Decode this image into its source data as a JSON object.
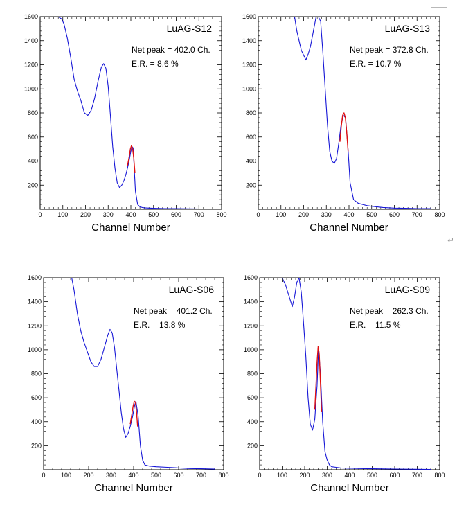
{
  "page": {
    "return_mark": "↵"
  },
  "chart_data": [
    {
      "type": "line",
      "title": "LuAG-S12",
      "xlabel": "Channel Number",
      "annotations": [
        "Net peak =  402.0 Ch.",
        "E.R. = 8.6 %"
      ],
      "xlim": [
        0,
        800
      ],
      "ylim": [
        0,
        1600
      ],
      "xticks": [
        0,
        100,
        200,
        300,
        400,
        500,
        600,
        700,
        800
      ],
      "yticks": [
        200,
        400,
        600,
        800,
        1000,
        1200,
        1400,
        1600
      ],
      "series": [
        {
          "color": "#1515d6",
          "x": [
            80,
            95,
            105,
            120,
            135,
            150,
            165,
            180,
            195,
            210,
            225,
            240,
            255,
            270,
            280,
            290,
            300,
            310,
            320,
            330,
            340,
            350,
            360,
            370,
            380,
            390,
            400,
            405,
            410,
            420,
            430,
            440,
            450,
            460,
            480,
            500,
            550,
            600,
            650,
            700,
            760
          ],
          "y": [
            1600,
            1580,
            1540,
            1420,
            1260,
            1080,
            980,
            900,
            800,
            780,
            820,
            920,
            1060,
            1180,
            1210,
            1170,
            1020,
            780,
            520,
            340,
            220,
            180,
            200,
            240,
            300,
            380,
            480,
            520,
            510,
            150,
            40,
            20,
            15,
            12,
            10,
            8,
            6,
            5,
            4,
            3,
            2
          ]
        },
        {
          "color": "#e01010",
          "x": [
            385,
            392,
            398,
            403,
            408,
            413,
            418
          ],
          "y": [
            360,
            430,
            500,
            530,
            500,
            420,
            300
          ]
        }
      ]
    },
    {
      "type": "line",
      "title": "LuAG-S13",
      "xlabel": "Channel Number",
      "annotations": [
        "Net peak =  372.8 Ch.",
        "E.R. = 10.7 %"
      ],
      "xlim": [
        0,
        800
      ],
      "ylim": [
        0,
        1600
      ],
      "xticks": [
        0,
        100,
        200,
        300,
        400,
        500,
        600,
        700,
        800
      ],
      "yticks": [
        200,
        400,
        600,
        800,
        1000,
        1200,
        1400,
        1600
      ],
      "series": [
        {
          "color": "#1515d6",
          "x": [
            160,
            170,
            180,
            190,
            200,
            210,
            220,
            230,
            240,
            255,
            265,
            275,
            285,
            295,
            305,
            315,
            325,
            335,
            345,
            355,
            365,
            375,
            385,
            395,
            405,
            420,
            440,
            460,
            480,
            500,
            550,
            600,
            650,
            700,
            760
          ],
          "y": [
            1600,
            1480,
            1400,
            1320,
            1280,
            1240,
            1290,
            1350,
            1450,
            1600,
            1600,
            1560,
            1300,
            1000,
            700,
            480,
            400,
            380,
            420,
            550,
            700,
            780,
            760,
            520,
            220,
            80,
            50,
            40,
            30,
            25,
            15,
            10,
            8,
            6,
            5
          ]
        },
        {
          "color": "#e01010",
          "x": [
            360,
            366,
            372,
            378,
            384,
            390,
            396
          ],
          "y": [
            560,
            690,
            780,
            800,
            760,
            640,
            480
          ]
        }
      ]
    },
    {
      "type": "line",
      "title": "LuAG-S06",
      "xlabel": "Channel Number",
      "annotations": [
        "Net peak =  401.2 Ch.",
        "E.R. = 13.8 %"
      ],
      "xlim": [
        0,
        800
      ],
      "ylim": [
        0,
        1600
      ],
      "xticks": [
        0,
        100,
        200,
        300,
        400,
        500,
        600,
        700,
        800
      ],
      "yticks": [
        200,
        400,
        600,
        800,
        1000,
        1200,
        1400,
        1600
      ],
      "series": [
        {
          "color": "#1515d6",
          "x": [
            125,
            135,
            150,
            165,
            180,
            195,
            210,
            225,
            240,
            255,
            270,
            285,
            295,
            305,
            315,
            325,
            335,
            345,
            355,
            365,
            375,
            385,
            395,
            405,
            410,
            420,
            430,
            440,
            450,
            470,
            500,
            550,
            600,
            650,
            700,
            760
          ],
          "y": [
            1600,
            1500,
            1300,
            1160,
            1060,
            980,
            900,
            860,
            860,
            920,
            1020,
            1120,
            1170,
            1140,
            1020,
            840,
            660,
            480,
            340,
            270,
            300,
            360,
            440,
            540,
            570,
            450,
            200,
            80,
            40,
            30,
            25,
            20,
            15,
            10,
            8,
            5
          ]
        },
        {
          "color": "#e01010",
          "x": [
            385,
            392,
            398,
            403,
            408,
            413,
            418
          ],
          "y": [
            380,
            460,
            530,
            570,
            560,
            480,
            360
          ]
        }
      ]
    },
    {
      "type": "line",
      "title": "LuAG-S09",
      "xlabel": "Channel Number",
      "annotations": [
        "Net peak =  262.3 Ch.",
        "E.R. = 11.5 %"
      ],
      "xlim": [
        0,
        800
      ],
      "ylim": [
        0,
        1600
      ],
      "xticks": [
        0,
        100,
        200,
        300,
        400,
        500,
        600,
        700,
        800
      ],
      "yticks": [
        200,
        400,
        600,
        800,
        1000,
        1200,
        1400,
        1600
      ],
      "series": [
        {
          "color": "#1515d6",
          "x": [
            100,
            115,
            125,
            135,
            145,
            155,
            165,
            175,
            185,
            195,
            205,
            215,
            225,
            235,
            245,
            255,
            262,
            270,
            280,
            290,
            300,
            310,
            320,
            340,
            360,
            400,
            450,
            500,
            600,
            700,
            760
          ],
          "y": [
            1600,
            1540,
            1480,
            1420,
            1360,
            1440,
            1560,
            1600,
            1480,
            1220,
            950,
            600,
            380,
            330,
            420,
            700,
            1020,
            800,
            400,
            150,
            80,
            40,
            25,
            20,
            15,
            12,
            10,
            8,
            6,
            4,
            3
          ]
        },
        {
          "color": "#e01010",
          "x": [
            245,
            250,
            255,
            260,
            265,
            270,
            275
          ],
          "y": [
            500,
            700,
            900,
            1030,
            960,
            720,
            480
          ]
        }
      ]
    }
  ]
}
